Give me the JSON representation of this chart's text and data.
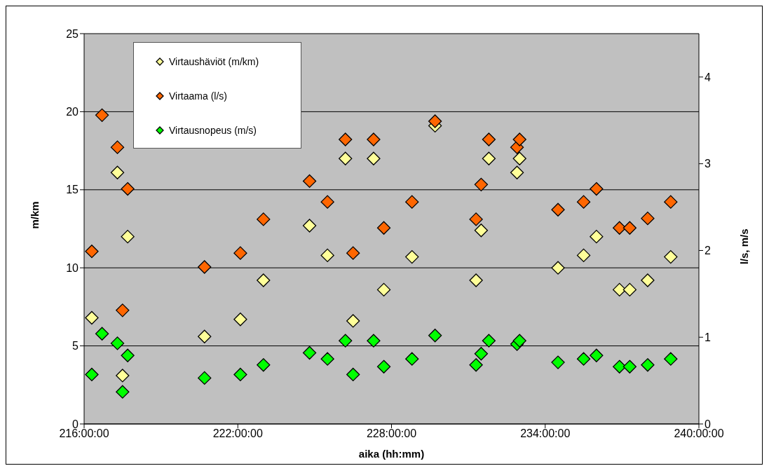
{
  "chart_data": {
    "type": "scatter",
    "xlabel": "aika (hh:mm)",
    "ylabel": "m/km",
    "y2label": "l/s, m/s",
    "xlim": [
      216,
      240
    ],
    "xticks": [
      {
        "value": 216,
        "label": "216:00:00"
      },
      {
        "value": 222,
        "label": "222:00:00"
      },
      {
        "value": 228,
        "label": "228:00:00"
      },
      {
        "value": 234,
        "label": "234:00:00"
      },
      {
        "value": 240,
        "label": "240:00:00"
      }
    ],
    "ylim": [
      0,
      25
    ],
    "yticks": [
      0,
      5,
      10,
      15,
      20,
      25
    ],
    "y2lim": [
      0,
      4.5
    ],
    "y2ticks": [
      0,
      1,
      2,
      3,
      4
    ],
    "grid": "y",
    "legend": "top left",
    "marker": "diamond",
    "series": [
      {
        "name": "Virtaushäviöt (m/km)",
        "color": "#ffff99",
        "x": [
          216.3,
          217.3,
          217.5,
          217.7,
          220.7,
          222.1,
          223.0,
          224.8,
          225.5,
          226.2,
          226.5,
          227.3,
          227.7,
          228.8,
          229.7,
          231.3,
          231.5,
          231.8,
          232.9,
          233.0,
          234.5,
          235.5,
          236.0,
          236.9,
          237.3,
          238.0,
          238.9
        ],
        "values": [
          6.8,
          16.1,
          3.1,
          12.0,
          5.6,
          6.7,
          9.2,
          12.7,
          10.8,
          17.0,
          6.6,
          17.0,
          8.6,
          10.7,
          19.1,
          9.2,
          12.4,
          17.0,
          16.1,
          17.0,
          10.0,
          10.8,
          12.0,
          8.6,
          8.6,
          9.2,
          10.7
        ]
      },
      {
        "name": "Virtaama (l/s)",
        "color": "#ff6600",
        "axis": "y2",
        "x": [
          216.3,
          216.7,
          217.3,
          217.5,
          217.7,
          220.7,
          222.1,
          223.0,
          224.8,
          225.5,
          226.2,
          226.5,
          227.3,
          227.7,
          228.8,
          229.7,
          231.3,
          231.5,
          231.8,
          232.9,
          233.0,
          234.5,
          235.5,
          236.0,
          236.9,
          237.3,
          238.0,
          238.9
        ],
        "values": [
          1.99,
          3.56,
          3.19,
          1.31,
          2.71,
          1.81,
          1.97,
          2.36,
          2.8,
          2.56,
          3.28,
          1.97,
          3.28,
          2.26,
          2.56,
          3.49,
          2.36,
          2.76,
          3.28,
          3.19,
          3.28,
          2.47,
          2.56,
          2.71,
          2.26,
          2.26,
          2.37,
          2.56
        ]
      },
      {
        "name": "Virtausnopeus (m/s)",
        "color": "#00ff00",
        "axis": "y2",
        "x": [
          216.3,
          216.7,
          217.3,
          217.5,
          217.7,
          220.7,
          222.1,
          223.0,
          224.8,
          225.5,
          226.2,
          226.5,
          227.3,
          227.7,
          228.8,
          229.7,
          231.3,
          231.5,
          231.8,
          232.9,
          233.0,
          234.5,
          235.5,
          236.0,
          236.9,
          237.3,
          238.0,
          238.9
        ],
        "values": [
          0.57,
          1.04,
          0.93,
          0.37,
          0.79,
          0.53,
          0.57,
          0.68,
          0.82,
          0.75,
          0.96,
          0.57,
          0.96,
          0.66,
          0.75,
          1.02,
          0.68,
          0.81,
          0.96,
          0.92,
          0.96,
          0.71,
          0.75,
          0.79,
          0.66,
          0.66,
          0.68,
          0.75
        ]
      }
    ]
  }
}
